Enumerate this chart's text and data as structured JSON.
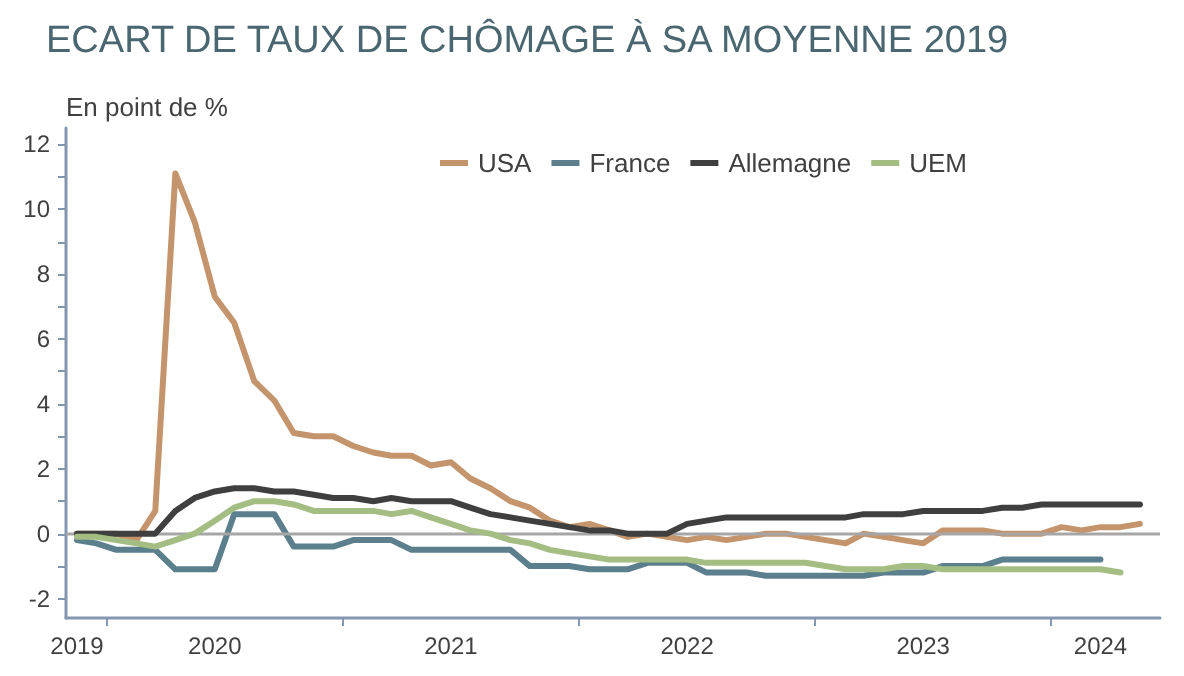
{
  "chart_data": {
    "type": "line",
    "title": "ECART DE TAUX DE CHÔMAGE À SA MOYENNE 2019",
    "ylabel": "En point de %",
    "x": [
      "2019-11",
      "2019-12",
      "2020-01",
      "2020-02",
      "2020-03",
      "2020-04",
      "2020-05",
      "2020-06",
      "2020-07",
      "2020-08",
      "2020-09",
      "2020-10",
      "2020-11",
      "2020-12",
      "2021-01",
      "2021-02",
      "2021-03",
      "2021-04",
      "2021-05",
      "2021-06",
      "2021-07",
      "2021-08",
      "2021-09",
      "2021-10",
      "2021-11",
      "2021-12",
      "2022-01",
      "2022-02",
      "2022-03",
      "2022-04",
      "2022-05",
      "2022-06",
      "2022-07",
      "2022-08",
      "2022-09",
      "2022-10",
      "2022-11",
      "2022-12",
      "2023-01",
      "2023-02",
      "2023-03",
      "2023-04",
      "2023-05",
      "2023-06",
      "2023-07",
      "2023-08",
      "2023-09",
      "2023-10",
      "2023-11",
      "2023-12",
      "2024-01",
      "2024-02",
      "2024-03",
      "2024-04",
      "2024-05"
    ],
    "series": [
      {
        "name": "USA",
        "color": "#c4956c",
        "values": [
          0,
          0,
          0,
          -0.2,
          0.7,
          11.1,
          9.6,
          7.3,
          6.5,
          4.7,
          4.1,
          3.1,
          3.0,
          3.0,
          2.7,
          2.5,
          2.4,
          2.4,
          2.1,
          2.2,
          1.7,
          1.4,
          1.0,
          0.8,
          0.4,
          0.2,
          0.3,
          0.1,
          -0.1,
          0,
          -0.1,
          -0.2,
          -0.1,
          -0.2,
          -0.1,
          0,
          0,
          -0.1,
          -0.2,
          -0.3,
          0,
          -0.1,
          -0.2,
          -0.3,
          0.1,
          0.1,
          0.1,
          0,
          0,
          0,
          0.2,
          0.1,
          0.2,
          0.2,
          0.3
        ]
      },
      {
        "name": "France",
        "color": "#5b7f8c",
        "values": [
          -0.2,
          -0.3,
          -0.5,
          -0.5,
          -0.5,
          -1.1,
          -1.1,
          -1.1,
          0.6,
          0.6,
          0.6,
          -0.4,
          -0.4,
          -0.4,
          -0.2,
          -0.2,
          -0.2,
          -0.5,
          -0.5,
          -0.5,
          -0.5,
          -0.5,
          -0.5,
          -1.0,
          -1.0,
          -1.0,
          -1.1,
          -1.1,
          -1.1,
          -0.9,
          -0.9,
          -0.9,
          -1.2,
          -1.2,
          -1.2,
          -1.3,
          -1.3,
          -1.3,
          -1.3,
          -1.3,
          -1.3,
          -1.2,
          -1.2,
          -1.2,
          -1.0,
          -1.0,
          -1.0,
          -0.8,
          -0.8,
          -0.8,
          -0.8,
          -0.8,
          -0.8,
          null,
          null
        ]
      },
      {
        "name": "Allemagne",
        "color": "#3f3f3f",
        "values": [
          0,
          0,
          0,
          0,
          0,
          0.7,
          1.1,
          1.3,
          1.4,
          1.4,
          1.3,
          1.3,
          1.2,
          1.1,
          1.1,
          1.0,
          1.1,
          1.0,
          1.0,
          1.0,
          0.8,
          0.6,
          0.5,
          0.4,
          0.3,
          0.2,
          0.1,
          0.1,
          0,
          0,
          0,
          0.3,
          0.4,
          0.5,
          0.5,
          0.5,
          0.5,
          0.5,
          0.5,
          0.5,
          0.6,
          0.6,
          0.6,
          0.7,
          0.7,
          0.7,
          0.7,
          0.8,
          0.8,
          0.9,
          0.9,
          0.9,
          0.9,
          0.9,
          0.9
        ]
      },
      {
        "name": "UEM",
        "color": "#a3bd82",
        "values": [
          -0.1,
          -0.1,
          -0.2,
          -0.3,
          -0.4,
          -0.2,
          0,
          0.4,
          0.8,
          1.0,
          1.0,
          0.9,
          0.7,
          0.7,
          0.7,
          0.7,
          0.6,
          0.7,
          0.5,
          0.3,
          0.1,
          0,
          -0.2,
          -0.3,
          -0.5,
          -0.6,
          -0.7,
          -0.8,
          -0.8,
          -0.8,
          -0.8,
          -0.8,
          -0.9,
          -0.9,
          -0.9,
          -0.9,
          -0.9,
          -0.9,
          -1.0,
          -1.1,
          -1.1,
          -1.1,
          -1.0,
          -1.0,
          -1.1,
          -1.1,
          -1.1,
          -1.1,
          -1.1,
          -1.1,
          -1.1,
          -1.1,
          -1.1,
          -1.2,
          null
        ]
      }
    ],
    "xlim": [
      "2019-10-15",
      "2024-06-01"
    ],
    "xticks": [
      {
        "value": "2019-11-01",
        "label": "2019"
      },
      {
        "value": "2019-12-16",
        "label": null
      },
      {
        "value": "2020-06-01",
        "label": "2020"
      },
      {
        "value": "2020-12-16",
        "label": null
      },
      {
        "value": "2021-06-01",
        "label": "2021"
      },
      {
        "value": "2021-12-16",
        "label": null
      },
      {
        "value": "2022-06-01",
        "label": "2022"
      },
      {
        "value": "2022-12-16",
        "label": null
      },
      {
        "value": "2023-06-01",
        "label": "2023"
      },
      {
        "value": "2023-12-16",
        "label": null
      },
      {
        "value": "2024-03-01",
        "label": "2024"
      }
    ],
    "ylim": [
      -2.6,
      12.5
    ],
    "yticks": [
      -2,
      {
        "value": -1,
        "label": null
      },
      0,
      {
        "value": 1,
        "label": null
      },
      2,
      {
        "value": 3,
        "label": null
      },
      4,
      {
        "value": 5,
        "label": null
      },
      6,
      {
        "value": 7,
        "label": null
      },
      8,
      {
        "value": 9,
        "label": null
      },
      10,
      {
        "value": 11,
        "label": null
      },
      12
    ],
    "ref_lines": [
      {
        "axis": "y",
        "value": 0,
        "color": "#a6a6a6"
      }
    ],
    "grid": false,
    "legend": "top",
    "marker": "none",
    "line_style": "solid"
  }
}
